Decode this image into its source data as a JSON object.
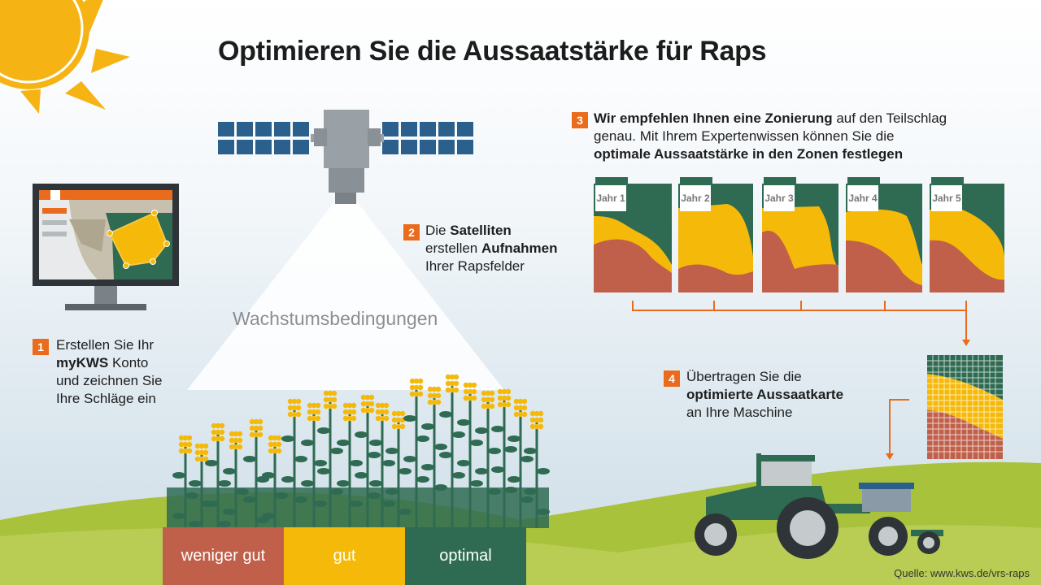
{
  "title": "Optimieren Sie die Aussaatstärke für Raps",
  "growth_label": "Wachstumsbedingungen",
  "steps": [
    {
      "num": "1",
      "line1": "Erstellen Sie Ihr",
      "bold": "myKWS",
      "line2_rest": " Konto",
      "line3": "und zeichnen Sie",
      "line4": "Ihre Schläge ein"
    },
    {
      "num": "2",
      "pre": "Die ",
      "bold1": "Satelliten",
      "pre2": "erstellen ",
      "bold2": "Aufnahmen",
      "line3": "Ihrer Rapsfelder"
    },
    {
      "num": "3",
      "bold1": "Wir empfehlen Ihnen eine Zonierung",
      "rest1": " auf den Teilschlag",
      "line2": "genau. Mit Ihrem Expertenwissen können Sie die",
      "bold3": "optimale Aussaatstärke in den Zonen festlegen"
    },
    {
      "num": "4",
      "line1": "Übertragen Sie die",
      "bold": "optimierte Aussaatkarte",
      "line3": "an Ihre Maschine"
    }
  ],
  "years": [
    "Jahr 1",
    "Jahr 2",
    "Jahr 3",
    "Jahr 4",
    "Jahr 5"
  ],
  "zones": [
    {
      "label": "weniger gut",
      "color": "#c0604a"
    },
    {
      "label": "gut",
      "color": "#f5b90a"
    },
    {
      "label": "optimal",
      "color": "#2f6b52"
    }
  ],
  "source": "Quelle: www.kws.de/vrs-raps",
  "colors": {
    "accent": "#ea6b1c",
    "green": "#2f6b52",
    "yellow": "#f5b90a",
    "red": "#c0604a",
    "satellite": "#2b5f8c"
  }
}
